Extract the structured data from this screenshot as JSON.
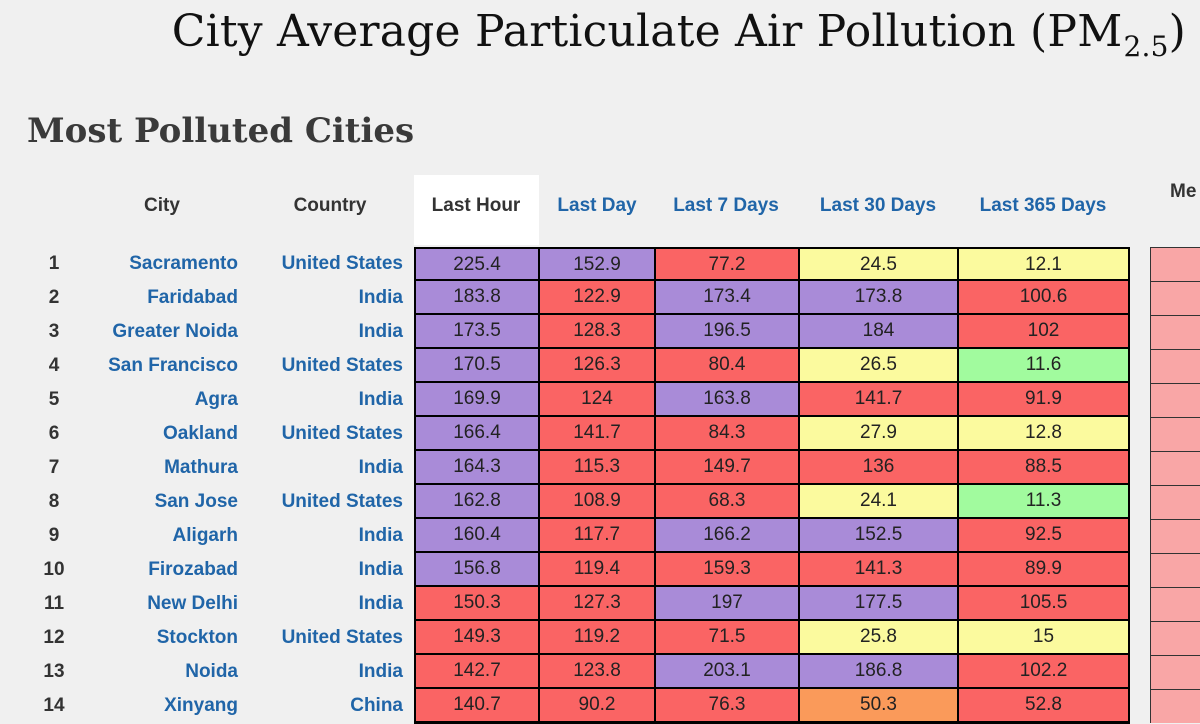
{
  "title": {
    "main": "City Average Particulate Air Pollution (PM",
    "subscript": "2.5",
    "close": ")"
  },
  "section_title": "Most Polluted Cities",
  "headers": {
    "rank": "",
    "city": "City",
    "country": "Country",
    "periods": [
      "Last Hour",
      "Last Day",
      "Last 7 Days",
      "Last 30 Days",
      "Last 365 Days"
    ],
    "active_period": "Last Hour",
    "cut_off": "Me"
  },
  "colors": {
    "purple": "#a98bd8",
    "red": "#fa6464",
    "yellow": "#fbfa9e",
    "green": "#a1fb9e",
    "orange": "#fa9a5a",
    "pink": "#f9a6a6",
    "link": "#2065a8",
    "background": "#f0f0f0"
  },
  "rows": [
    {
      "rank": "1",
      "city": "Sacramento",
      "country": "United States",
      "values": [
        "225.4",
        "152.9",
        "77.2",
        "24.5",
        "12.1"
      ],
      "levels": [
        "purple",
        "purple",
        "red",
        "yellow",
        "yellow"
      ]
    },
    {
      "rank": "2",
      "city": "Faridabad",
      "country": "India",
      "values": [
        "183.8",
        "122.9",
        "173.4",
        "173.8",
        "100.6"
      ],
      "levels": [
        "purple",
        "red",
        "purple",
        "purple",
        "red"
      ]
    },
    {
      "rank": "3",
      "city": "Greater Noida",
      "country": "India",
      "values": [
        "173.5",
        "128.3",
        "196.5",
        "184",
        "102"
      ],
      "levels": [
        "purple",
        "red",
        "purple",
        "purple",
        "red"
      ]
    },
    {
      "rank": "4",
      "city": "San Francisco",
      "country": "United States",
      "values": [
        "170.5",
        "126.3",
        "80.4",
        "26.5",
        "11.6"
      ],
      "levels": [
        "purple",
        "red",
        "red",
        "yellow",
        "green"
      ]
    },
    {
      "rank": "5",
      "city": "Agra",
      "country": "India",
      "values": [
        "169.9",
        "124",
        "163.8",
        "141.7",
        "91.9"
      ],
      "levels": [
        "purple",
        "red",
        "purple",
        "red",
        "red"
      ]
    },
    {
      "rank": "6",
      "city": "Oakland",
      "country": "United States",
      "values": [
        "166.4",
        "141.7",
        "84.3",
        "27.9",
        "12.8"
      ],
      "levels": [
        "purple",
        "red",
        "red",
        "yellow",
        "yellow"
      ]
    },
    {
      "rank": "7",
      "city": "Mathura",
      "country": "India",
      "values": [
        "164.3",
        "115.3",
        "149.7",
        "136",
        "88.5"
      ],
      "levels": [
        "purple",
        "red",
        "red",
        "red",
        "red"
      ]
    },
    {
      "rank": "8",
      "city": "San Jose",
      "country": "United States",
      "values": [
        "162.8",
        "108.9",
        "68.3",
        "24.1",
        "11.3"
      ],
      "levels": [
        "purple",
        "red",
        "red",
        "yellow",
        "green"
      ]
    },
    {
      "rank": "9",
      "city": "Aligarh",
      "country": "India",
      "values": [
        "160.4",
        "117.7",
        "166.2",
        "152.5",
        "92.5"
      ],
      "levels": [
        "purple",
        "red",
        "purple",
        "purple",
        "red"
      ]
    },
    {
      "rank": "10",
      "city": "Firozabad",
      "country": "India",
      "values": [
        "156.8",
        "119.4",
        "159.3",
        "141.3",
        "89.9"
      ],
      "levels": [
        "purple",
        "red",
        "red",
        "red",
        "red"
      ]
    },
    {
      "rank": "11",
      "city": "New Delhi",
      "country": "India",
      "values": [
        "150.3",
        "127.3",
        "197",
        "177.5",
        "105.5"
      ],
      "levels": [
        "red",
        "red",
        "purple",
        "purple",
        "red"
      ]
    },
    {
      "rank": "12",
      "city": "Stockton",
      "country": "United States",
      "values": [
        "149.3",
        "119.2",
        "71.5",
        "25.8",
        "15"
      ],
      "levels": [
        "red",
        "red",
        "red",
        "yellow",
        "yellow"
      ]
    },
    {
      "rank": "13",
      "city": "Noida",
      "country": "India",
      "values": [
        "142.7",
        "123.8",
        "203.1",
        "186.8",
        "102.2"
      ],
      "levels": [
        "red",
        "red",
        "purple",
        "purple",
        "red"
      ]
    },
    {
      "rank": "14",
      "city": "Xinyang",
      "country": "China",
      "values": [
        "140.7",
        "90.2",
        "76.3",
        "50.3",
        "52.8"
      ],
      "levels": [
        "red",
        "red",
        "red",
        "orange",
        "red"
      ]
    }
  ]
}
